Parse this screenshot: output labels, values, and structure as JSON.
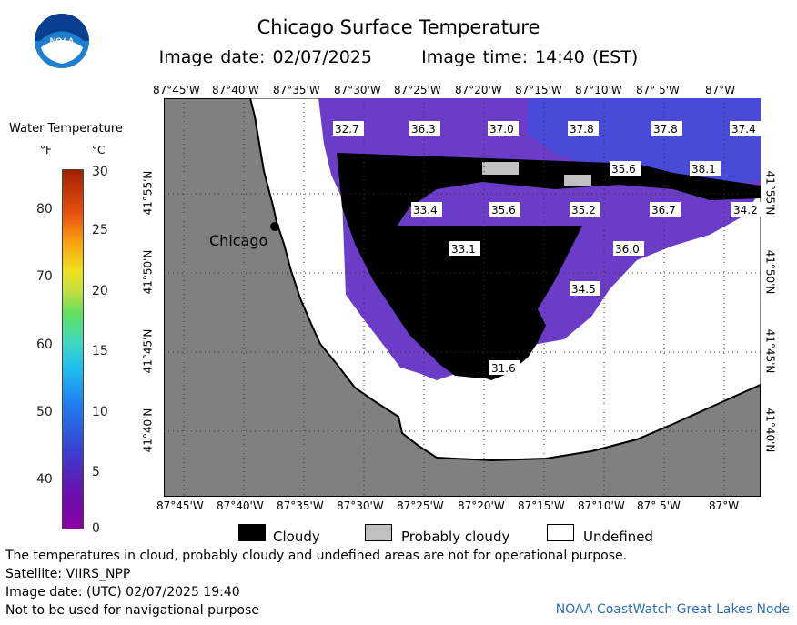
{
  "header": {
    "title": "Chicago Surface Temperature",
    "image_date": "Image date: 02/07/2025",
    "image_time": "Image time: 14:40 (EST)"
  },
  "logo": {
    "text": "NOAA"
  },
  "legend": {
    "title": "Water Temperature",
    "unit_f": "°F",
    "unit_c": "°C",
    "f_ticks": [
      "80",
      "70",
      "60",
      "50",
      "40"
    ],
    "c_ticks": [
      "30",
      "25",
      "20",
      "15",
      "10",
      "5",
      "0"
    ],
    "colors": {
      "cloudy": "#000000",
      "probably_cloudy": "#c0c0c0",
      "undefined": "#ffffff",
      "land": "#808080"
    }
  },
  "map": {
    "lon_labels": [
      "87°45'W",
      "87°40'W",
      "87°35'W",
      "87°30'W",
      "87°25'W",
      "87°20'W",
      "87°15'W",
      "87°10'W",
      "87° 5'W",
      "87°W"
    ],
    "lat_labels": [
      "41°55'N",
      "41°50'N",
      "41°45'N",
      "41°40'N"
    ],
    "city": "Chicago",
    "temps": [
      "32.7",
      "36.3",
      "37.0",
      "37.8",
      "37.8",
      "37.4",
      "35.6",
      "38.1",
      "33.4",
      "35.6",
      "35.2",
      "36.7",
      "34.2",
      "33.1",
      "36.0",
      "34.5",
      "31.6"
    ]
  },
  "key": {
    "cloudy": "Cloudy",
    "probably_cloudy": "Probably cloudy",
    "undefined": "Undefined"
  },
  "footer": {
    "disclaimer": "The temperatures in cloud, probably cloudy and undefined areas are not for operational purpose.",
    "satellite": "Satellite: VIIRS_NPP",
    "utc_date": "Image date: (UTC) 02/07/2025  19:40",
    "nav_warning": "Not to be used for navigational purpose",
    "credit": "NOAA CoastWatch Great Lakes Node"
  }
}
